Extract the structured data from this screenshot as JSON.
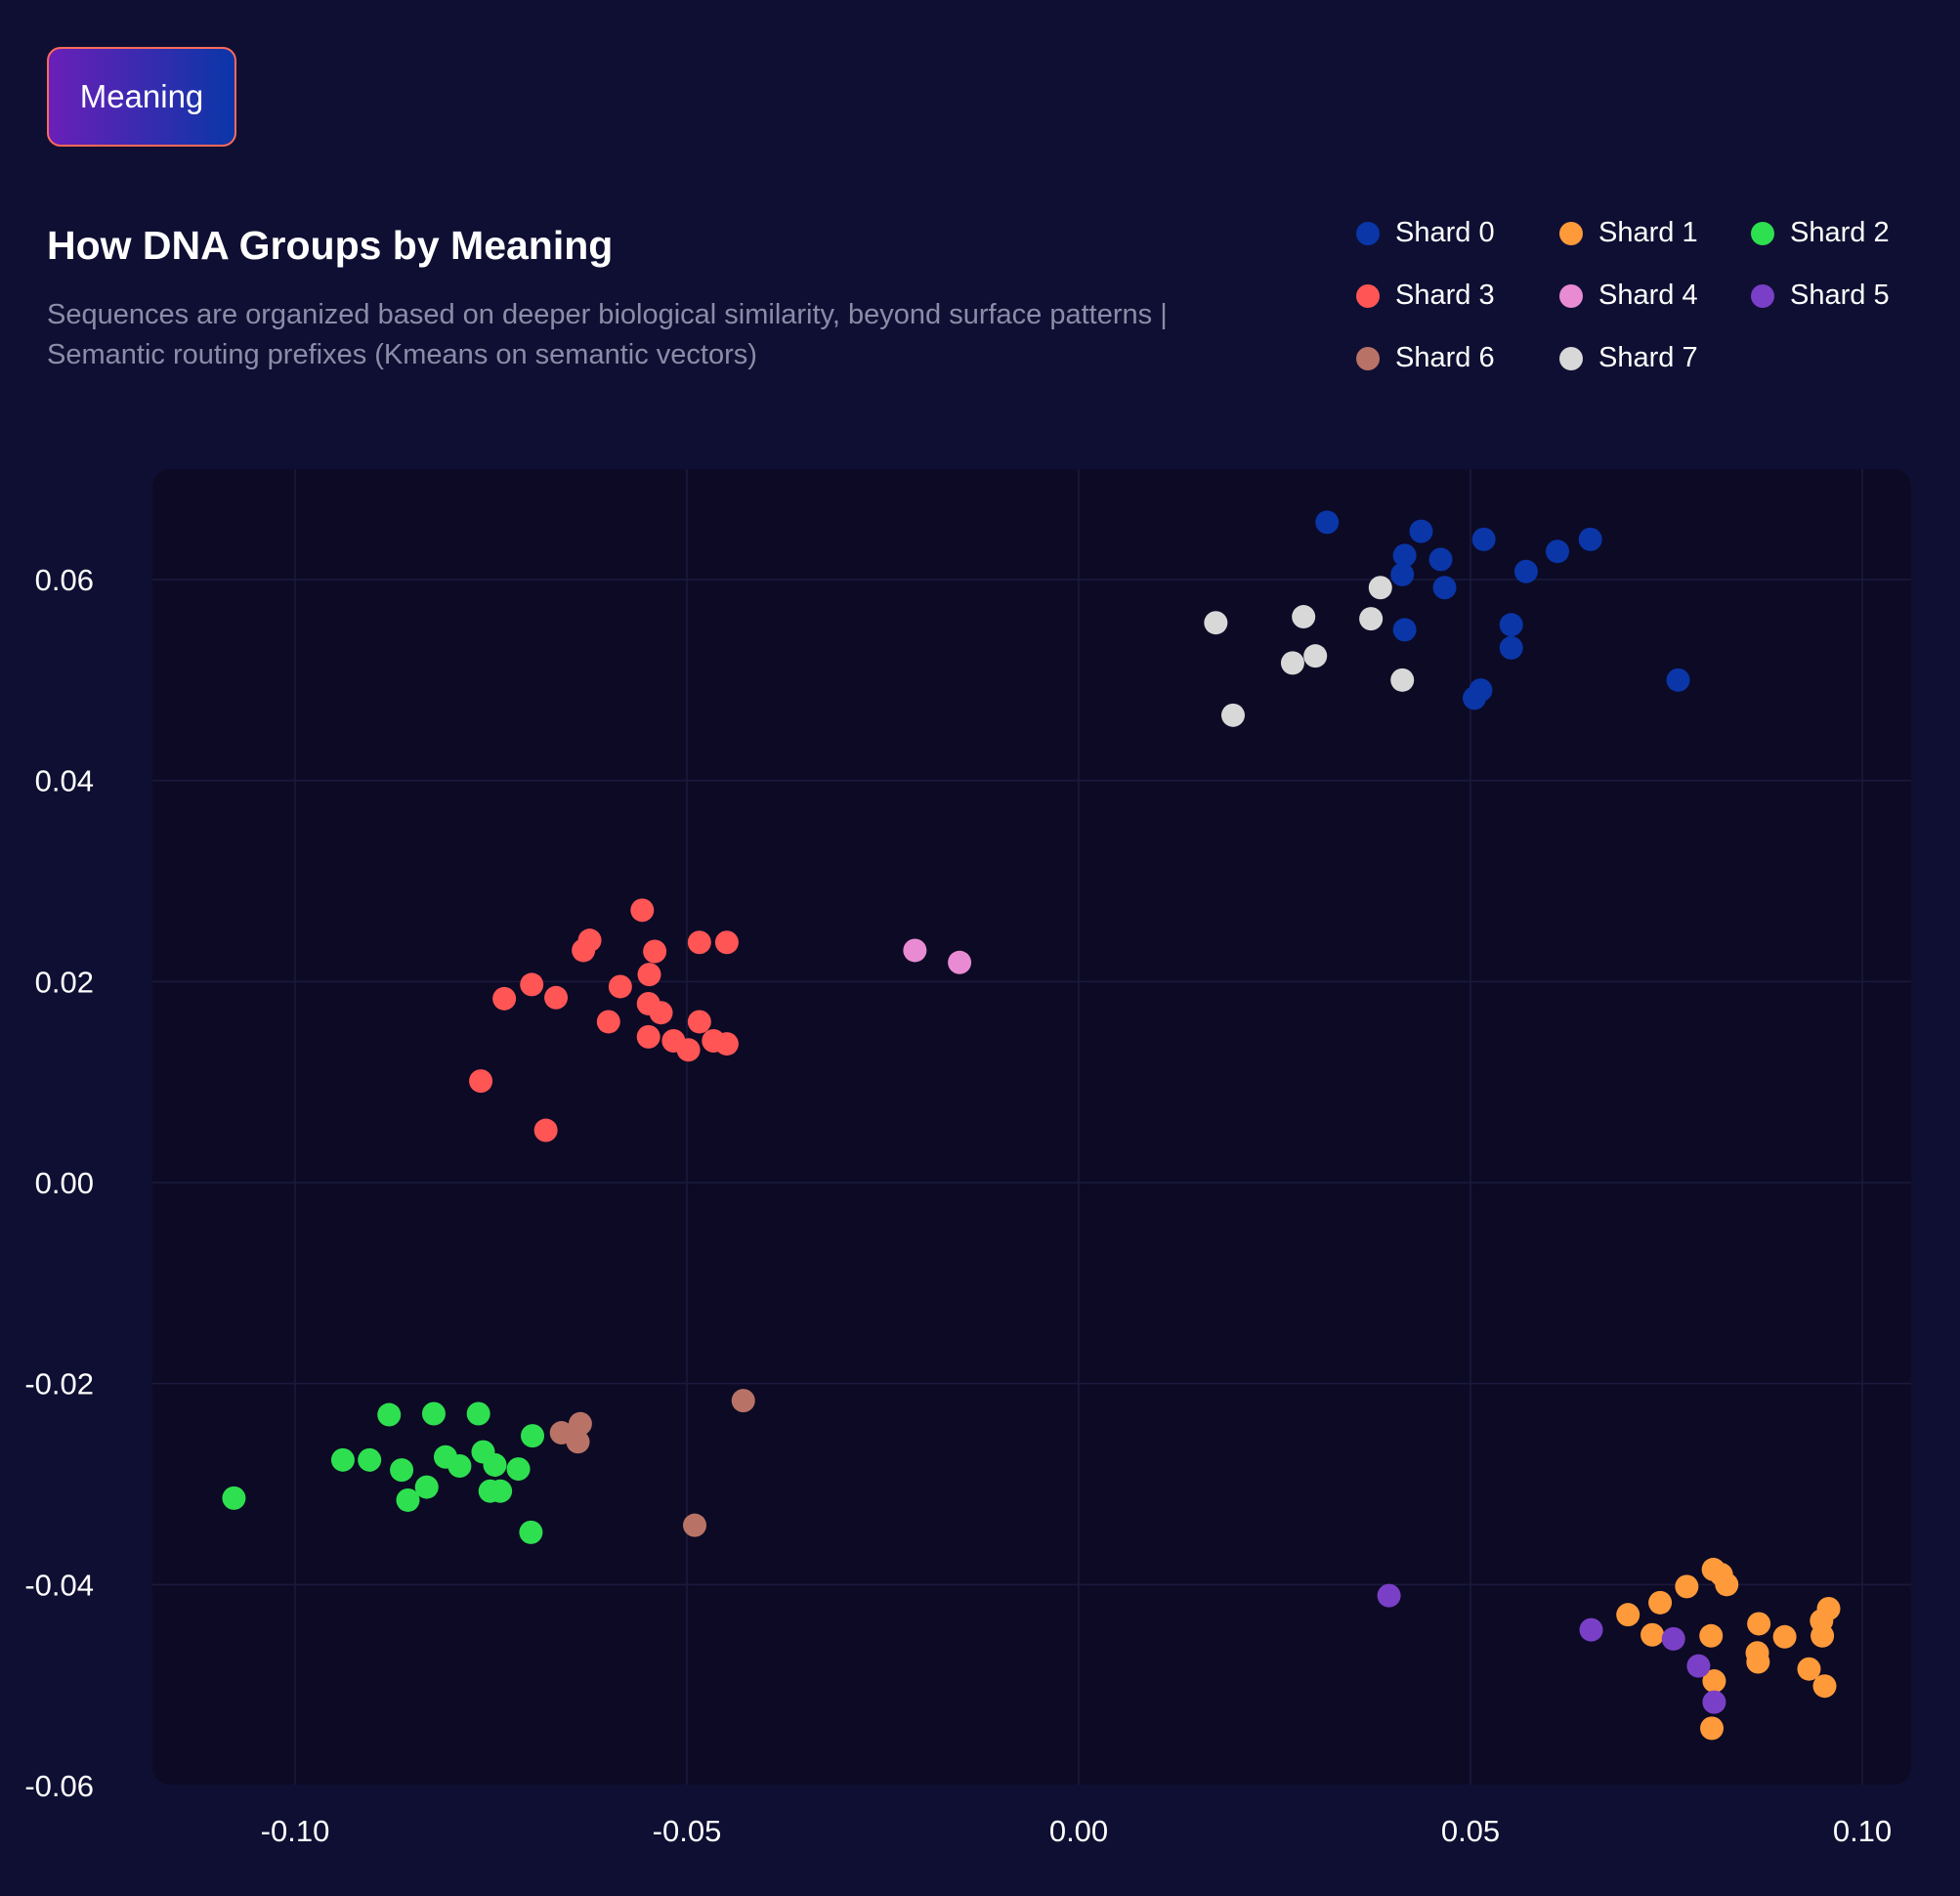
{
  "tab": {
    "label": "Meaning"
  },
  "header": {
    "title": "How DNA Groups by Meaning",
    "subtitle": "Sequences are organized based on deeper biological similarity, beyond surface patterns | Semantic routing prefixes (Kmeans on semantic vectors)"
  },
  "colors": {
    "background": "#0f0f33",
    "plot_background": "#0c0a25",
    "grid": "#1b1a3c"
  },
  "chart_data": {
    "type": "scatter",
    "title": "How DNA Groups by Meaning",
    "xlabel": "",
    "ylabel": "",
    "xlim": [
      -0.118,
      0.106
    ],
    "ylim": [
      -0.06,
      0.071
    ],
    "grid": true,
    "legend_position": "top-right",
    "x_ticks": [
      -0.1,
      -0.05,
      0.0,
      0.05,
      0.1
    ],
    "x_tick_labels": [
      "-0.10",
      "-0.05",
      "0.00",
      "0.05",
      "0.10"
    ],
    "y_ticks": [
      0.06,
      0.04,
      0.02,
      0.0,
      -0.02,
      -0.04,
      -0.06
    ],
    "y_tick_labels": [
      "0.06",
      "0.04",
      "0.02",
      "0.00",
      "-0.02",
      "-0.04",
      "-0.06"
    ],
    "series": [
      {
        "name": "Shard 0",
        "color": "#0a36a8",
        "points": [
          [
            0.0317,
            0.0657
          ],
          [
            0.0437,
            0.0648
          ],
          [
            0.0416,
            0.0624
          ],
          [
            0.0462,
            0.062
          ],
          [
            0.0413,
            0.0605
          ],
          [
            0.0467,
            0.0592
          ],
          [
            0.0517,
            0.064
          ],
          [
            0.0571,
            0.0608
          ],
          [
            0.0611,
            0.0628
          ],
          [
            0.0653,
            0.064
          ],
          [
            0.0552,
            0.0555
          ],
          [
            0.0416,
            0.055
          ],
          [
            0.0552,
            0.0532
          ],
          [
            0.0513,
            0.049
          ],
          [
            0.0505,
            0.0482
          ],
          [
            0.0765,
            0.05
          ]
        ]
      },
      {
        "name": "Shard 1",
        "color": "#ff9a3a",
        "points": [
          [
            0.081,
            -0.0385
          ],
          [
            0.082,
            -0.039
          ],
          [
            0.0827,
            -0.04
          ],
          [
            0.0776,
            -0.0402
          ],
          [
            0.0742,
            -0.0418
          ],
          [
            0.0701,
            -0.043
          ],
          [
            0.0732,
            -0.045
          ],
          [
            0.0807,
            -0.0451
          ],
          [
            0.0868,
            -0.0439
          ],
          [
            0.0901,
            -0.0452
          ],
          [
            0.0957,
            -0.0424
          ],
          [
            0.0948,
            -0.0436
          ],
          [
            0.0949,
            -0.0451
          ],
          [
            0.0866,
            -0.0468
          ],
          [
            0.0867,
            -0.0477
          ],
          [
            0.0932,
            -0.0484
          ],
          [
            0.0811,
            -0.0496
          ],
          [
            0.0952,
            -0.0501
          ],
          [
            0.0808,
            -0.0543
          ]
        ]
      },
      {
        "name": "Shard 2",
        "color": "#2ee04f",
        "points": [
          [
            -0.088,
            -0.0231
          ],
          [
            -0.0823,
            -0.023
          ],
          [
            -0.0766,
            -0.023
          ],
          [
            -0.0697,
            -0.0252
          ],
          [
            -0.0939,
            -0.0276
          ],
          [
            -0.0905,
            -0.0276
          ],
          [
            -0.0864,
            -0.0286
          ],
          [
            -0.0808,
            -0.0273
          ],
          [
            -0.079,
            -0.0282
          ],
          [
            -0.076,
            -0.0268
          ],
          [
            -0.0745,
            -0.0281
          ],
          [
            -0.0715,
            -0.0285
          ],
          [
            -0.0832,
            -0.0303
          ],
          [
            -0.0751,
            -0.0307
          ],
          [
            -0.0738,
            -0.0307
          ],
          [
            -0.0856,
            -0.0316
          ],
          [
            -0.1078,
            -0.0314
          ],
          [
            -0.0699,
            -0.0348
          ]
        ]
      },
      {
        "name": "Shard 3",
        "color": "#ff5555",
        "points": [
          [
            -0.0557,
            0.0271
          ],
          [
            -0.0624,
            0.0241
          ],
          [
            -0.0632,
            0.0231
          ],
          [
            -0.0484,
            0.0239
          ],
          [
            -0.0449,
            0.0239
          ],
          [
            -0.0541,
            0.023
          ],
          [
            -0.0548,
            0.0207
          ],
          [
            -0.0585,
            0.0195
          ],
          [
            -0.0698,
            0.0197
          ],
          [
            -0.0667,
            0.0184
          ],
          [
            -0.0733,
            0.0183
          ],
          [
            -0.0549,
            0.0178
          ],
          [
            -0.0533,
            0.0169
          ],
          [
            -0.06,
            0.016
          ],
          [
            -0.0484,
            0.016
          ],
          [
            -0.0549,
            0.0145
          ],
          [
            -0.0517,
            0.0141
          ],
          [
            -0.0466,
            0.0141
          ],
          [
            -0.0449,
            0.0138
          ],
          [
            -0.0498,
            0.0132
          ],
          [
            -0.0763,
            0.0101
          ],
          [
            -0.068,
            0.0052
          ]
        ]
      },
      {
        "name": "Shard 4",
        "color": "#e98bd3",
        "points": [
          [
            -0.0209,
            0.0231
          ],
          [
            -0.0152,
            0.0219
          ]
        ]
      },
      {
        "name": "Shard 5",
        "color": "#7a3fc7",
        "points": [
          [
            0.0396,
            -0.0411
          ],
          [
            0.0654,
            -0.0445
          ],
          [
            0.0759,
            -0.0454
          ],
          [
            0.0791,
            -0.0481
          ],
          [
            0.0811,
            -0.0517
          ]
        ]
      },
      {
        "name": "Shard 6",
        "color": "#b87366",
        "points": [
          [
            -0.0428,
            -0.0217
          ],
          [
            -0.066,
            -0.0249
          ],
          [
            -0.0636,
            -0.024
          ],
          [
            -0.0639,
            -0.0258
          ],
          [
            -0.049,
            -0.0341
          ]
        ]
      },
      {
        "name": "Shard 7",
        "color": "#d8d8d8",
        "points": [
          [
            0.0385,
            0.0592
          ],
          [
            0.0287,
            0.0563
          ],
          [
            0.0373,
            0.0561
          ],
          [
            0.0175,
            0.0557
          ],
          [
            0.0302,
            0.0524
          ],
          [
            0.0273,
            0.0517
          ],
          [
            0.0413,
            0.05
          ],
          [
            0.0197,
            0.0465
          ]
        ]
      }
    ]
  }
}
